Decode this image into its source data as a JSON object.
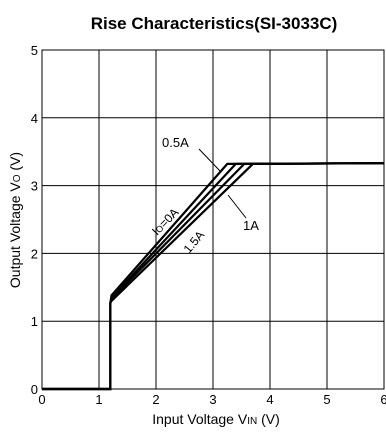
{
  "chart_data": {
    "type": "line",
    "title": "Rise Characteristics(SI-3033C)",
    "xlabel": "Input Voltage V",
    "xlabel_sub": "IN",
    "xlabel_unit": " (V)",
    "ylabel": "Output Voltage V",
    "ylabel_sub": "O",
    "ylabel_unit": " (V)",
    "xlim": [
      0,
      6
    ],
    "ylim": [
      0,
      5
    ],
    "x_ticks": [
      "0",
      "1",
      "2",
      "3",
      "4",
      "5",
      "6"
    ],
    "y_ticks": [
      "0",
      "1",
      "2",
      "3",
      "4",
      "5"
    ],
    "grid": true,
    "series": [
      {
        "name": "Io=0A",
        "points": [
          [
            0,
            0
          ],
          [
            1.2,
            0
          ],
          [
            1.2,
            1.27
          ],
          [
            1.22,
            1.38
          ],
          [
            3.25,
            3.32
          ],
          [
            6,
            3.33
          ]
        ]
      },
      {
        "name": "0.5A",
        "points": [
          [
            0,
            0
          ],
          [
            1.2,
            0
          ],
          [
            1.2,
            1.27
          ],
          [
            1.22,
            1.35
          ],
          [
            3.4,
            3.32
          ],
          [
            6,
            3.33
          ]
        ]
      },
      {
        "name": "1A",
        "points": [
          [
            0,
            0
          ],
          [
            1.2,
            0
          ],
          [
            1.2,
            1.27
          ],
          [
            1.22,
            1.33
          ],
          [
            3.55,
            3.32
          ],
          [
            6,
            3.33
          ]
        ]
      },
      {
        "name": "1.5A",
        "points": [
          [
            0,
            0
          ],
          [
            1.2,
            0
          ],
          [
            1.2,
            1.27
          ],
          [
            1.22,
            1.3
          ],
          [
            3.7,
            3.32
          ],
          [
            6,
            3.33
          ]
        ]
      }
    ],
    "annotations": {
      "io_prefix": "I",
      "io_sub": "O",
      "io_suffix": "=0A",
      "half_amp": "0.5A",
      "one_amp": "1A",
      "one_half_amp": "1.5A"
    }
  }
}
